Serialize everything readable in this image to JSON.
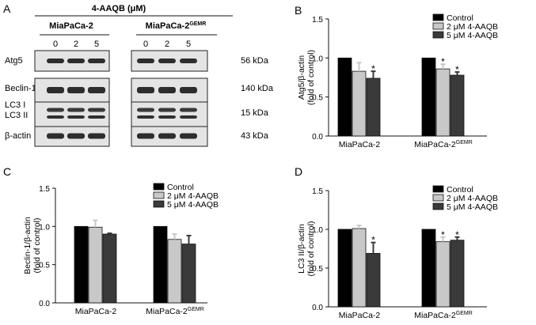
{
  "panels": {
    "A": {
      "letter": "A"
    },
    "B": {
      "letter": "B"
    },
    "C": {
      "letter": "C"
    },
    "D": {
      "letter": "D"
    }
  },
  "blot": {
    "treatment_label": "4-AAQB (μM)",
    "cell_lines": [
      {
        "base": "MiaPaCa-2",
        "sup": ""
      },
      {
        "base": "MiaPaCa-2",
        "sup": "GEMR"
      }
    ],
    "doses": [
      "0",
      "2",
      "5",
      "0",
      "2",
      "5"
    ],
    "rows": [
      {
        "label": "Atg5",
        "size": "56 kDa"
      },
      {
        "label": "Beclin-1",
        "size": "140 kDa"
      },
      {
        "label": "LC3 I\nLC3 II",
        "size": "15 kDa"
      },
      {
        "label": "β-actin",
        "size": "43 kDa"
      }
    ]
  },
  "chart_data": [
    {
      "panel": "B",
      "type": "bar",
      "ylabel_line1": "Atg5/β-actin",
      "ylabel_line2": "(fold of control)",
      "ylim": [
        0,
        1.5
      ],
      "yticks": [
        "0.0",
        "0.5",
        "1.0",
        "1.5"
      ],
      "categories": [
        {
          "base": "MiaPaCa-2",
          "sup": ""
        },
        {
          "base": "MiaPaCa-2",
          "sup": "GEMR"
        }
      ],
      "legend": [
        "Control",
        "2 μM 4-AAQB",
        "5 μM 4-AAQB"
      ],
      "legend_position": "top-right",
      "series": [
        {
          "name": "Control",
          "values": [
            1.0,
            1.0
          ],
          "errors": [
            0,
            0
          ],
          "sig": [
            "",
            ""
          ]
        },
        {
          "name": "2 μM 4-AAQB",
          "values": [
            0.83,
            0.86
          ],
          "errors": [
            0.11,
            0.06
          ],
          "sig": [
            "",
            "*"
          ]
        },
        {
          "name": "5 μM 4-AAQB",
          "values": [
            0.74,
            0.78
          ],
          "errors": [
            0.09,
            0.04
          ],
          "sig": [
            "*",
            "*"
          ]
        }
      ]
    },
    {
      "panel": "C",
      "type": "bar",
      "ylabel_line1": "Beclin-1/β-actin",
      "ylabel_line2": "(fold of control)",
      "ylim": [
        0,
        1.5
      ],
      "yticks": [
        "0.0",
        "0.5",
        "1.0",
        "1.5"
      ],
      "categories": [
        {
          "base": "MiaPaCa-2",
          "sup": ""
        },
        {
          "base": "MiaPaCa-2",
          "sup": "GEMR"
        }
      ],
      "legend": [
        "Control",
        "2 μM 4-AAQB",
        "5 μM 4-AAQB"
      ],
      "legend_position": "top-right",
      "series": [
        {
          "name": "Control",
          "values": [
            1.0,
            1.0
          ],
          "errors": [
            0,
            0
          ],
          "sig": [
            "",
            ""
          ]
        },
        {
          "name": "2 μM 4-AAQB",
          "values": [
            0.99,
            0.83
          ],
          "errors": [
            0.09,
            0.07
          ],
          "sig": [
            "",
            ""
          ]
        },
        {
          "name": "5 μM 4-AAQB",
          "values": [
            0.9,
            0.77
          ],
          "errors": [
            0.01,
            0.11
          ],
          "sig": [
            "",
            ""
          ]
        }
      ]
    },
    {
      "panel": "D",
      "type": "bar",
      "ylabel_line1": "LC3 II/β-actin",
      "ylabel_line2": "(fold of control)",
      "ylim": [
        0,
        1.5
      ],
      "yticks": [
        "0.0",
        "0.5",
        "1.0",
        "1.5"
      ],
      "categories": [
        {
          "base": "MiaPaCa-2",
          "sup": ""
        },
        {
          "base": "MiaPaCa-2",
          "sup": "GEMR"
        }
      ],
      "legend": [
        "Control",
        "2 μM 4-AAQB",
        "5 μM 4-AAQB"
      ],
      "legend_position": "top-right",
      "series": [
        {
          "name": "Control",
          "values": [
            1.0,
            1.0
          ],
          "errors": [
            0,
            0
          ],
          "sig": [
            "",
            ""
          ]
        },
        {
          "name": "2 μM 4-AAQB",
          "values": [
            1.01,
            0.84
          ],
          "errors": [
            0.04,
            0.06
          ],
          "sig": [
            "",
            "*"
          ]
        },
        {
          "name": "5 μM 4-AAQB",
          "values": [
            0.69,
            0.86
          ],
          "errors": [
            0.14,
            0.04
          ],
          "sig": [
            "*",
            "*"
          ]
        }
      ]
    }
  ],
  "colors": {
    "control": "#000000",
    "dose2": "#c8c8c8",
    "dose5": "#3a3a3a"
  }
}
